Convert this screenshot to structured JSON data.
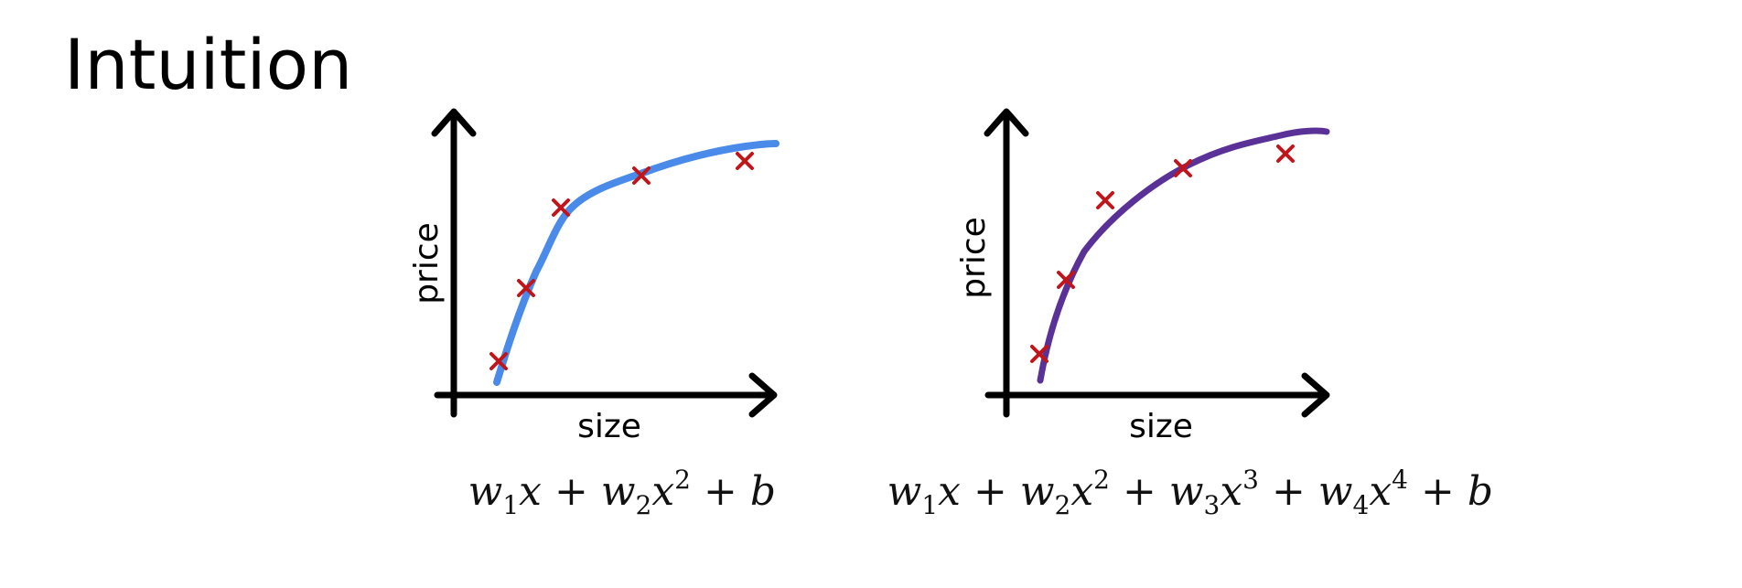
{
  "title": "Intuition",
  "colors": {
    "axis": "#000000",
    "marker": "#c0161b",
    "curve_left": "#4a8ae8",
    "curve_right": "#5a3197"
  },
  "plots": [
    {
      "name": "quadratic-fit",
      "xlabel": "size",
      "ylabel": "price",
      "formula_parts": [
        {
          "t": "w",
          "k": "var"
        },
        {
          "t": "1",
          "k": "sub"
        },
        {
          "t": "x",
          "k": "var"
        },
        {
          "t": " + ",
          "k": "op"
        },
        {
          "t": "w",
          "k": "var"
        },
        {
          "t": "2",
          "k": "sub"
        },
        {
          "t": "x",
          "k": "var"
        },
        {
          "t": "2",
          "k": "sup"
        },
        {
          "t": " + ",
          "k": "op"
        },
        {
          "t": "b",
          "k": "var"
        }
      ]
    },
    {
      "name": "quartic-fit",
      "xlabel": "size",
      "ylabel": "price",
      "formula_parts": [
        {
          "t": "w",
          "k": "var"
        },
        {
          "t": "1",
          "k": "sub"
        },
        {
          "t": "x",
          "k": "var"
        },
        {
          "t": " + ",
          "k": "op"
        },
        {
          "t": "w",
          "k": "var"
        },
        {
          "t": "2",
          "k": "sub"
        },
        {
          "t": "x",
          "k": "var"
        },
        {
          "t": "2",
          "k": "sup"
        },
        {
          "t": " + ",
          "k": "op"
        },
        {
          "t": "w",
          "k": "var"
        },
        {
          "t": "3",
          "k": "sub"
        },
        {
          "t": "x",
          "k": "var"
        },
        {
          "t": "3",
          "k": "sup"
        },
        {
          "t": " + ",
          "k": "op"
        },
        {
          "t": "w",
          "k": "var"
        },
        {
          "t": "4",
          "k": "sub"
        },
        {
          "t": "x",
          "k": "var"
        },
        {
          "t": "4",
          "k": "sup"
        },
        {
          "t": " + ",
          "k": "op"
        },
        {
          "t": "b",
          "k": "var"
        }
      ]
    }
  ]
}
